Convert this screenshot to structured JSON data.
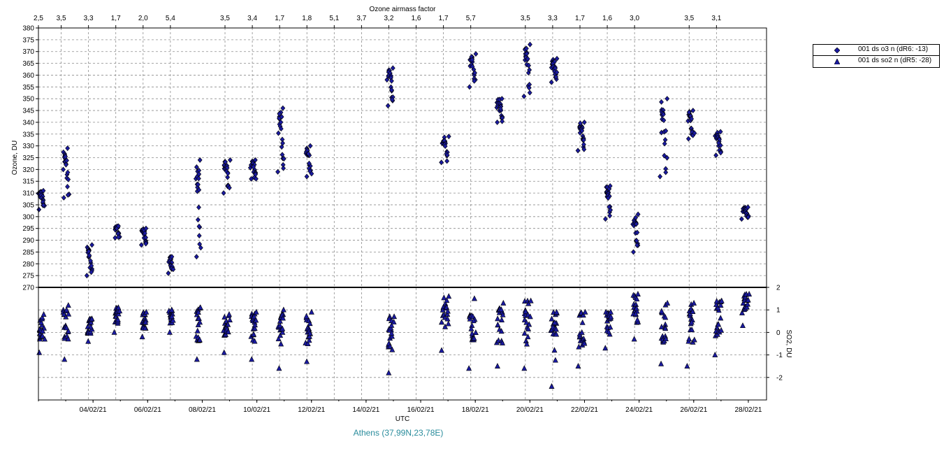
{
  "caption": "Athens (37,99N,23,78E)",
  "legend": [
    {
      "label": "001 ds o3  n (dR6: -13)",
      "marker": "diamond",
      "color": "#1a1aa0"
    },
    {
      "label": "001 ds so2 n (dR5: -28)",
      "marker": "triangle",
      "color": "#1a1aa0"
    }
  ],
  "colors": {
    "marker_fill": "#1a1aa0",
    "marker_edge": "#000000",
    "grid": "#8c8c8c",
    "caption": "#2a8c9c"
  },
  "chart_data": {
    "type": "scatter",
    "top_axis_label": "Ozone airmass factor",
    "top_ticks": [
      {
        "x": "2021-02-02 00:00",
        "label": "2,5"
      },
      {
        "x": "2021-02-02 20:00",
        "label": "3,5"
      },
      {
        "x": "2021-02-03 20:00",
        "label": "3,3"
      },
      {
        "x": "2021-02-04 20:00",
        "label": "1,7"
      },
      {
        "x": "2021-02-05 20:00",
        "label": "2,0"
      },
      {
        "x": "2021-02-06 20:00",
        "label": "5,4"
      },
      {
        "x": "2021-02-08 20:00",
        "label": "3,5"
      },
      {
        "x": "2021-02-09 20:00",
        "label": "3,4"
      },
      {
        "x": "2021-02-10 20:00",
        "label": "1,7"
      },
      {
        "x": "2021-02-11 20:00",
        "label": "1,8"
      },
      {
        "x": "2021-02-12 20:00",
        "label": "5,1"
      },
      {
        "x": "2021-02-13 20:00",
        "label": "3,7"
      },
      {
        "x": "2021-02-14 20:00",
        "label": "3,2"
      },
      {
        "x": "2021-02-15 20:00",
        "label": "1,6"
      },
      {
        "x": "2021-02-16 20:00",
        "label": "1,7"
      },
      {
        "x": "2021-02-17 20:00",
        "label": "5,7"
      },
      {
        "x": "2021-02-19 20:00",
        "label": "3,5"
      },
      {
        "x": "2021-02-20 20:00",
        "label": "3,3"
      },
      {
        "x": "2021-02-21 20:00",
        "label": "1,7"
      },
      {
        "x": "2021-02-22 20:00",
        "label": "1,6"
      },
      {
        "x": "2021-02-23 20:00",
        "label": "3,0"
      },
      {
        "x": "2021-02-25 20:00",
        "label": "3,5"
      },
      {
        "x": "2021-02-26 20:00",
        "label": "3,1"
      }
    ],
    "x_axis_label": "UTC",
    "x_range": [
      "2021-02-02 00:00",
      "2021-02-28 16:00"
    ],
    "x_ticks": [
      "04/02/21",
      "06/02/21",
      "08/02/21",
      "10/02/21",
      "12/02/21",
      "14/02/21",
      "16/02/21",
      "18/02/21",
      "20/02/21",
      "22/02/21",
      "24/02/21",
      "26/02/21",
      "28/02/21"
    ],
    "ozone_axis": {
      "label": "Ozone, DU",
      "range": [
        270,
        380
      ],
      "ticks": [
        270,
        275,
        280,
        285,
        290,
        295,
        300,
        305,
        310,
        315,
        320,
        325,
        330,
        335,
        340,
        345,
        350,
        355,
        360,
        365,
        370,
        375,
        380
      ]
    },
    "so2_axis": {
      "label": "SO2, DU",
      "range": [
        -3,
        2
      ],
      "ticks": [
        -2,
        -1,
        0,
        1,
        2
      ]
    },
    "grid": true,
    "legend_position": "right",
    "ozone_clusters": [
      {
        "start": "2021-02-02 00:10",
        "end": "2021-02-02 05:00",
        "min": 303,
        "max": 311
      },
      {
        "start": "2021-02-02 22:00",
        "end": "2021-02-03 02:30",
        "min": 308,
        "max": 329
      },
      {
        "start": "2021-02-03 19:00",
        "end": "2021-02-03 23:00",
        "min": 275,
        "max": 288
      },
      {
        "start": "2021-02-04 19:00",
        "end": "2021-02-04 23:00",
        "min": 291,
        "max": 296
      },
      {
        "start": "2021-02-05 19:00",
        "end": "2021-02-05 23:00",
        "min": 288,
        "max": 295
      },
      {
        "start": "2021-02-06 19:00",
        "end": "2021-02-06 22:00",
        "min": 276,
        "max": 283
      },
      {
        "start": "2021-02-07 19:00",
        "end": "2021-02-07 22:00",
        "min": 283,
        "max": 324
      },
      {
        "start": "2021-02-08 19:00",
        "end": "2021-02-09 00:00",
        "min": 310,
        "max": 324
      },
      {
        "start": "2021-02-09 19:00",
        "end": "2021-02-09 23:00",
        "min": 316,
        "max": 324
      },
      {
        "start": "2021-02-10 19:00",
        "end": "2021-02-10 23:30",
        "min": 319,
        "max": 346
      },
      {
        "start": "2021-02-11 19:00",
        "end": "2021-02-11 23:30",
        "min": 317,
        "max": 330
      },
      {
        "start": "2021-02-14 19:00",
        "end": "2021-02-15 00:00",
        "min": 347,
        "max": 363
      },
      {
        "start": "2021-02-16 19:00",
        "end": "2021-02-17 00:00",
        "min": 323,
        "max": 334
      },
      {
        "start": "2021-02-17 19:00",
        "end": "2021-02-18 00:00",
        "min": 355,
        "max": 369
      },
      {
        "start": "2021-02-18 19:00",
        "end": "2021-02-19 00:00",
        "min": 340,
        "max": 350
      },
      {
        "start": "2021-02-19 19:00",
        "end": "2021-02-20 00:00",
        "min": 351,
        "max": 373
      },
      {
        "start": "2021-02-20 19:00",
        "end": "2021-02-21 00:00",
        "min": 357,
        "max": 367
      },
      {
        "start": "2021-02-21 19:00",
        "end": "2021-02-22 00:00",
        "min": 328,
        "max": 340
      },
      {
        "start": "2021-02-22 19:00",
        "end": "2021-02-22 23:00",
        "min": 299,
        "max": 313
      },
      {
        "start": "2021-02-23 19:00",
        "end": "2021-02-23 23:00",
        "min": 285,
        "max": 301
      },
      {
        "start": "2021-02-24 19:00",
        "end": "2021-02-25 00:00",
        "min": 317,
        "max": 350
      },
      {
        "start": "2021-02-25 19:00",
        "end": "2021-02-26 00:00",
        "min": 333,
        "max": 345
      },
      {
        "start": "2021-02-26 19:00",
        "end": "2021-02-27 00:00",
        "min": 326,
        "max": 336
      },
      {
        "start": "2021-02-27 19:00",
        "end": "2021-02-28 00:00",
        "min": 299,
        "max": 304
      }
    ],
    "so2_clusters": [
      {
        "start": "2021-02-02 00:10",
        "end": "2021-02-02 05:00",
        "min": -0.9,
        "max": 0.8
      },
      {
        "start": "2021-02-02 22:00",
        "end": "2021-02-03 02:30",
        "min": -1.2,
        "max": 1.2
      },
      {
        "start": "2021-02-03 19:00",
        "end": "2021-02-03 23:00",
        "min": -0.4,
        "max": 0.6
      },
      {
        "start": "2021-02-04 19:00",
        "end": "2021-02-04 23:00",
        "min": 0.0,
        "max": 1.1
      },
      {
        "start": "2021-02-05 19:00",
        "end": "2021-02-05 23:00",
        "min": -0.2,
        "max": 0.9
      },
      {
        "start": "2021-02-06 19:00",
        "end": "2021-02-06 22:00",
        "min": 0.0,
        "max": 1.0
      },
      {
        "start": "2021-02-07 19:00",
        "end": "2021-02-07 22:00",
        "min": -1.2,
        "max": 1.1
      },
      {
        "start": "2021-02-08 19:00",
        "end": "2021-02-09 00:00",
        "min": -0.9,
        "max": 0.8
      },
      {
        "start": "2021-02-09 19:00",
        "end": "2021-02-09 23:00",
        "min": -1.2,
        "max": 0.9
      },
      {
        "start": "2021-02-10 19:00",
        "end": "2021-02-10 23:30",
        "min": -1.6,
        "max": 1.0
      },
      {
        "start": "2021-02-11 19:00",
        "end": "2021-02-11 23:30",
        "min": -1.3,
        "max": 0.9
      },
      {
        "start": "2021-02-14 19:00",
        "end": "2021-02-15 00:00",
        "min": -1.8,
        "max": 0.7
      },
      {
        "start": "2021-02-16 19:00",
        "end": "2021-02-17 00:00",
        "min": -0.8,
        "max": 1.6
      },
      {
        "start": "2021-02-17 19:00",
        "end": "2021-02-18 00:00",
        "min": -1.6,
        "max": 1.5
      },
      {
        "start": "2021-02-18 19:00",
        "end": "2021-02-19 00:00",
        "min": -1.5,
        "max": 1.3
      },
      {
        "start": "2021-02-19 19:00",
        "end": "2021-02-20 00:00",
        "min": -1.6,
        "max": 1.4
      },
      {
        "start": "2021-02-20 19:00",
        "end": "2021-02-21 00:00",
        "min": -2.4,
        "max": 0.9
      },
      {
        "start": "2021-02-21 19:00",
        "end": "2021-02-22 00:00",
        "min": -1.5,
        "max": 0.9
      },
      {
        "start": "2021-02-22 19:00",
        "end": "2021-02-22 23:00",
        "min": -0.7,
        "max": 0.9
      },
      {
        "start": "2021-02-23 19:00",
        "end": "2021-02-23 23:00",
        "min": -0.3,
        "max": 1.7
      },
      {
        "start": "2021-02-24 19:00",
        "end": "2021-02-25 00:00",
        "min": -1.4,
        "max": 1.3
      },
      {
        "start": "2021-02-25 19:00",
        "end": "2021-02-26 00:00",
        "min": -1.5,
        "max": 1.3
      },
      {
        "start": "2021-02-26 19:00",
        "end": "2021-02-27 00:00",
        "min": -1.0,
        "max": 1.4
      },
      {
        "start": "2021-02-27 19:00",
        "end": "2021-02-28 00:00",
        "min": 0.3,
        "max": 1.7
      }
    ]
  }
}
